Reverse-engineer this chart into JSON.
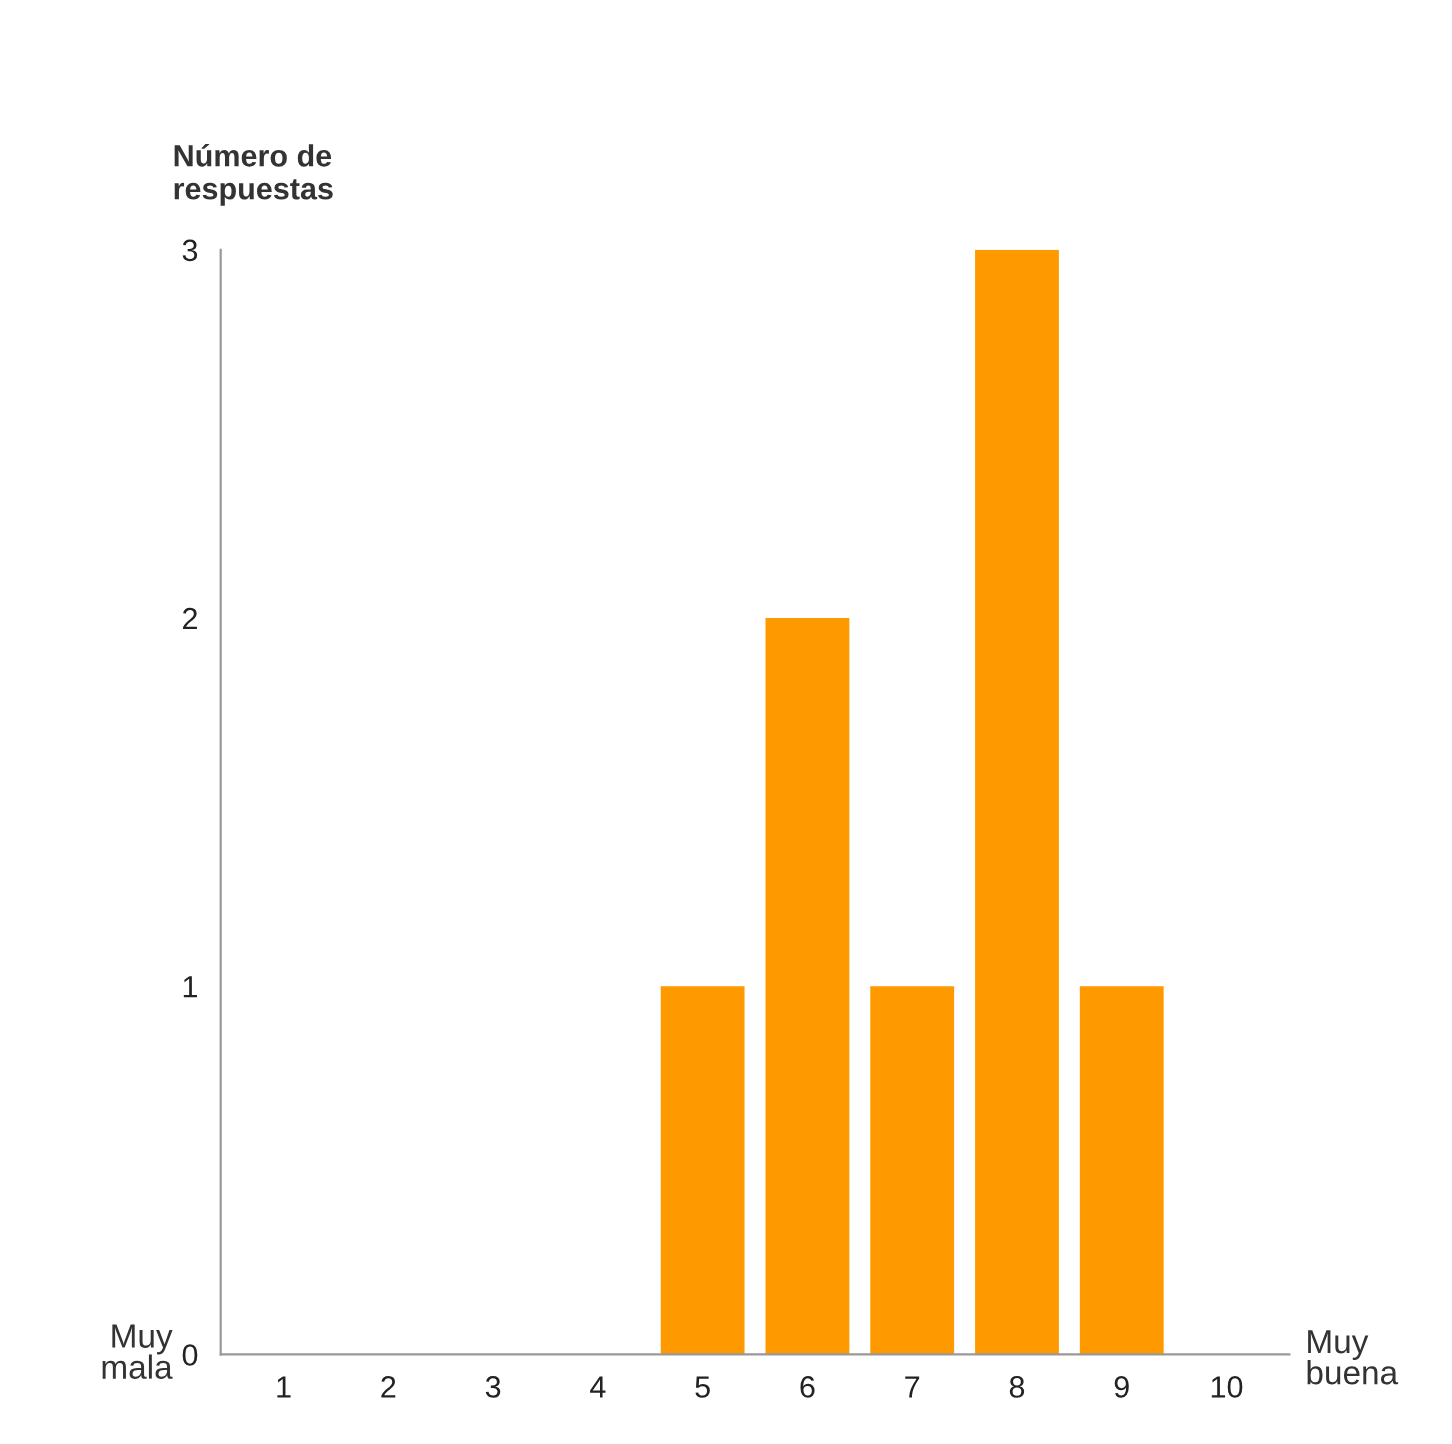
{
  "chart_data": {
    "type": "bar",
    "ylabel": "Número de\nrespuestas",
    "categories": [
      "1",
      "2",
      "3",
      "4",
      "5",
      "6",
      "7",
      "8",
      "9",
      "10"
    ],
    "values": [
      0,
      0,
      0,
      0,
      1,
      2,
      1,
      3,
      1,
      0
    ],
    "color": "#ff9900",
    "ylim": [
      0,
      3
    ],
    "yticks": [
      0,
      1,
      2,
      3
    ],
    "grid": false,
    "annotations": [
      "Muy\nmala",
      "Muy\nbuena"
    ]
  }
}
